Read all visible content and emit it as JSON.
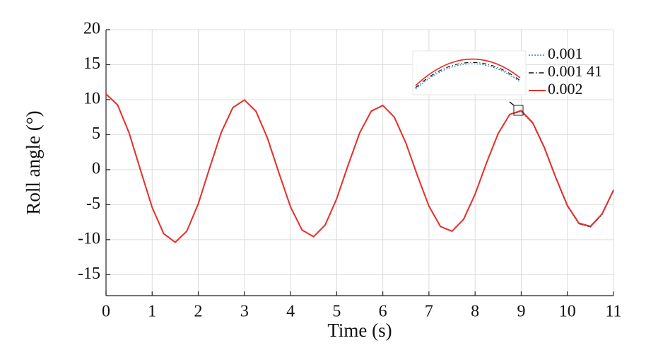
{
  "chart_data": {
    "type": "line",
    "x_label": "Time (s)",
    "y_label": "Roll angle (°)",
    "x": [
      0,
      0.25,
      0.5,
      0.75,
      1,
      1.25,
      1.5,
      1.75,
      2,
      2.25,
      2.5,
      2.75,
      3,
      3.25,
      3.5,
      3.75,
      4,
      4.25,
      4.5,
      4.75,
      5,
      5.25,
      5.5,
      5.75,
      6,
      6.25,
      6.5,
      6.75,
      7,
      7.25,
      7.5,
      7.75,
      8,
      8.25,
      8.5,
      8.75,
      9,
      9.25,
      9.5,
      9.75,
      10,
      10.25,
      10.5,
      10.75,
      11
    ],
    "series": [
      {
        "name": "0.001",
        "color": "#2a7bd4",
        "style": "dotted",
        "values": [
          10.8,
          9.27,
          5.26,
          -0.11,
          -5.39,
          -9.14,
          -10.38,
          -8.8,
          -4.87,
          0.32,
          5.36,
          8.88,
          9.96,
          8.35,
          4.5,
          -0.51,
          -5.32,
          -8.63,
          -9.57,
          -7.91,
          -4.15,
          0.69,
          5.28,
          8.37,
          9.18,
          7.5,
          3.81,
          -0.85,
          -5.22,
          -8.13,
          -8.8,
          -7.1,
          -3.5,
          1.0,
          5.16,
          7.89,
          8.34,
          6.61,
          3.1,
          -1.23,
          -5.2,
          -7.74,
          -8.19,
          -6.45,
          -3.02
        ]
      },
      {
        "name": "0.001 41",
        "color": "#111111",
        "style": "dashdot",
        "values": [
          10.8,
          9.27,
          5.26,
          -0.11,
          -5.39,
          -9.14,
          -10.38,
          -8.8,
          -4.87,
          0.32,
          5.36,
          8.88,
          9.96,
          8.35,
          4.5,
          -0.51,
          -5.32,
          -8.63,
          -9.57,
          -7.91,
          -4.15,
          0.69,
          5.28,
          8.37,
          9.18,
          7.5,
          3.81,
          -0.85,
          -5.22,
          -8.13,
          -8.8,
          -7.1,
          -3.5,
          1.0,
          5.16,
          7.89,
          8.39,
          6.66,
          3.15,
          -1.18,
          -5.15,
          -7.69,
          -8.14,
          -6.4,
          -2.97
        ]
      },
      {
        "name": "0.002",
        "color": "#e8302a",
        "style": "solid",
        "values": [
          10.8,
          9.27,
          5.26,
          -0.11,
          -5.39,
          -9.14,
          -10.38,
          -8.8,
          -4.87,
          0.32,
          5.36,
          8.88,
          9.96,
          8.35,
          4.5,
          -0.51,
          -5.32,
          -8.63,
          -9.57,
          -7.91,
          -4.15,
          0.69,
          5.28,
          8.37,
          9.18,
          7.5,
          3.81,
          -0.85,
          -5.22,
          -8.13,
          -8.8,
          -7.1,
          -3.5,
          1.0,
          5.16,
          7.89,
          8.44,
          6.71,
          3.2,
          -1.13,
          -5.1,
          -7.64,
          -8.09,
          -6.35,
          -2.92
        ]
      }
    ],
    "xlim": [
      0,
      11
    ],
    "ylim": [
      -18,
      20
    ],
    "xticks": [
      0,
      1,
      2,
      3,
      4,
      5,
      6,
      7,
      8,
      9,
      10,
      11
    ],
    "yticks": [
      -15,
      -10,
      -5,
      0,
      5,
      10,
      15,
      20
    ],
    "grid": true,
    "legend": "upper right"
  }
}
